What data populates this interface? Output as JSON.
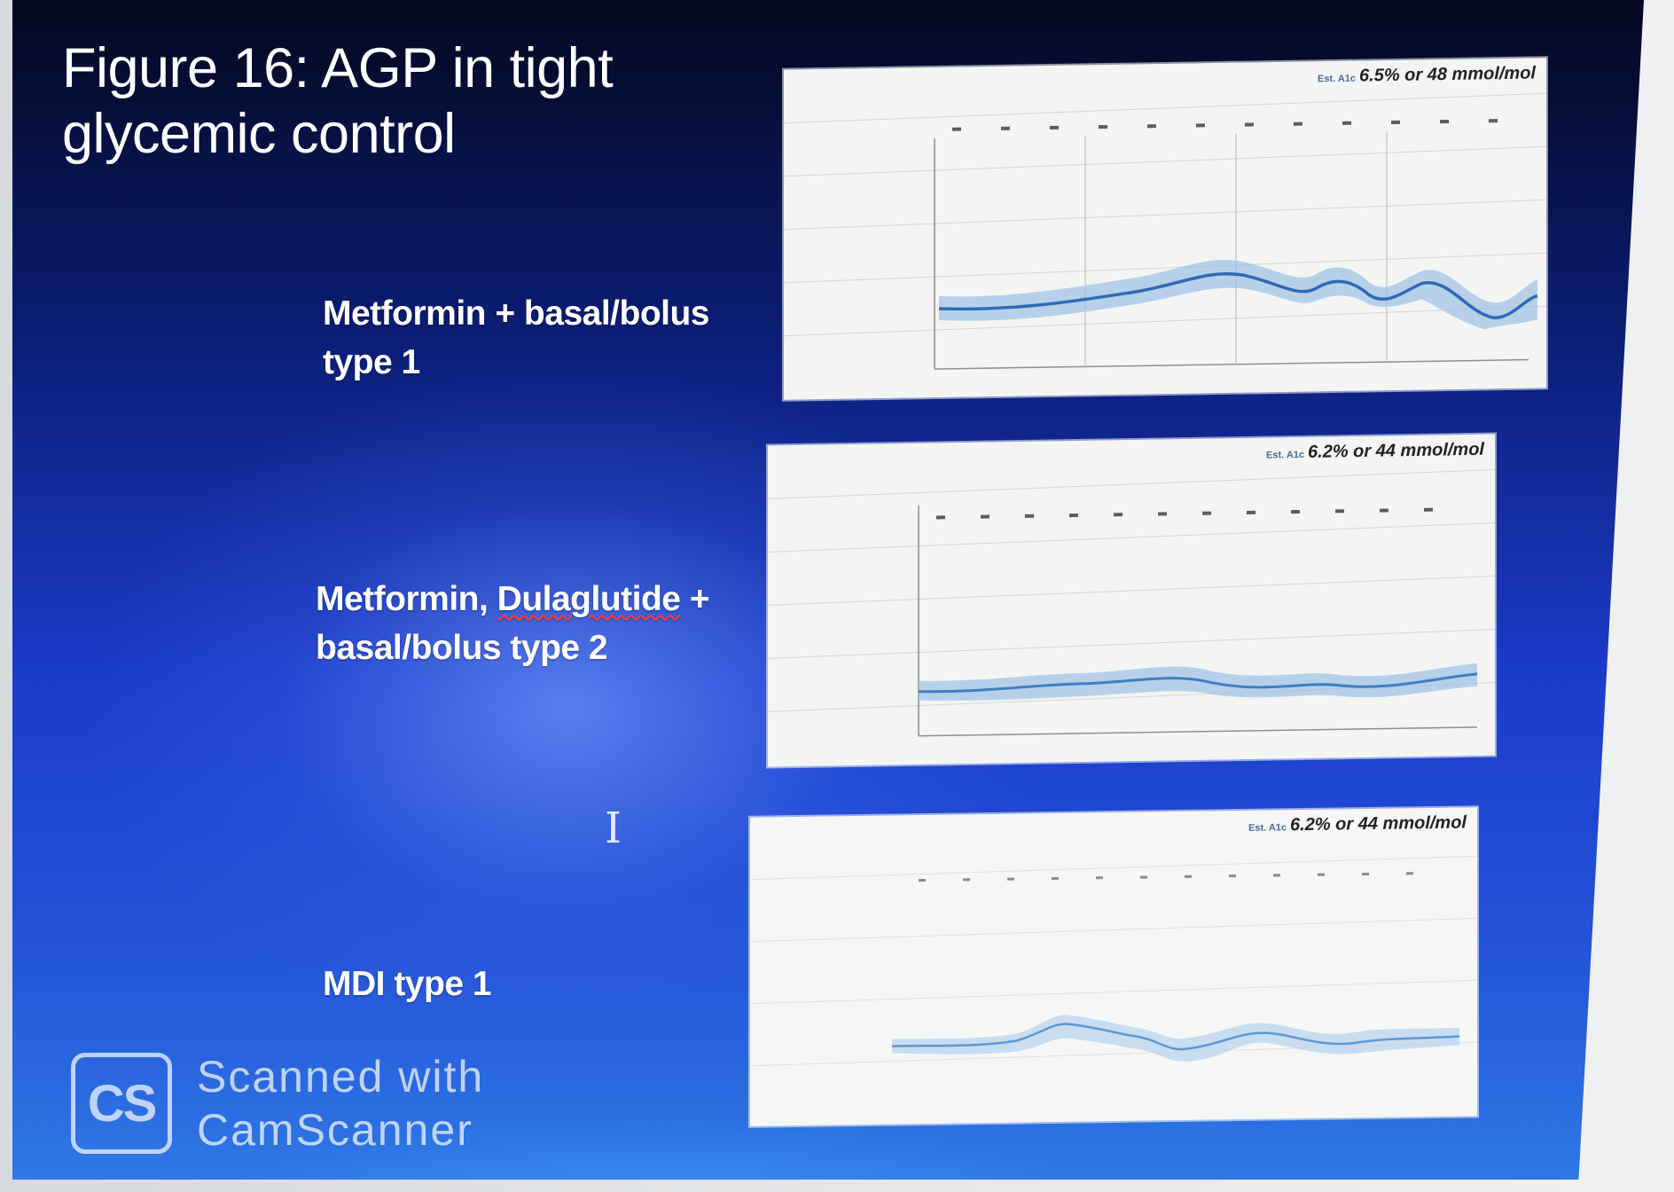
{
  "slide": {
    "title": "Figure 16: AGP in tight\nglycemic control",
    "cases": [
      {
        "label": "Metformin + basal/bolus\ntype 1"
      },
      {
        "label_a": "Metformin, ",
        "label_b": "Dulaglutide",
        "label_c": " +\nbasal/bolus type 2"
      },
      {
        "label": "MDI type 1"
      }
    ],
    "panels": [
      {
        "hba1c": "6.5% or 48 mmol/mol"
      },
      {
        "hba1c": "6.2% or 44 mmol/mol"
      },
      {
        "hba1c": "6.2% or 44 mmol/mol"
      }
    ]
  },
  "watermark": {
    "logo": "CS",
    "text": "Scanned  with\nCamScanner"
  },
  "colors": {
    "slide_top": "#04081e",
    "slide_bottom": "#2f78e6",
    "trace": "#3f7fc4",
    "band": "#9cc0e6"
  },
  "icons": {
    "cursor": "text-cursor-icon",
    "logo": "camscanner-logo-icon"
  }
}
